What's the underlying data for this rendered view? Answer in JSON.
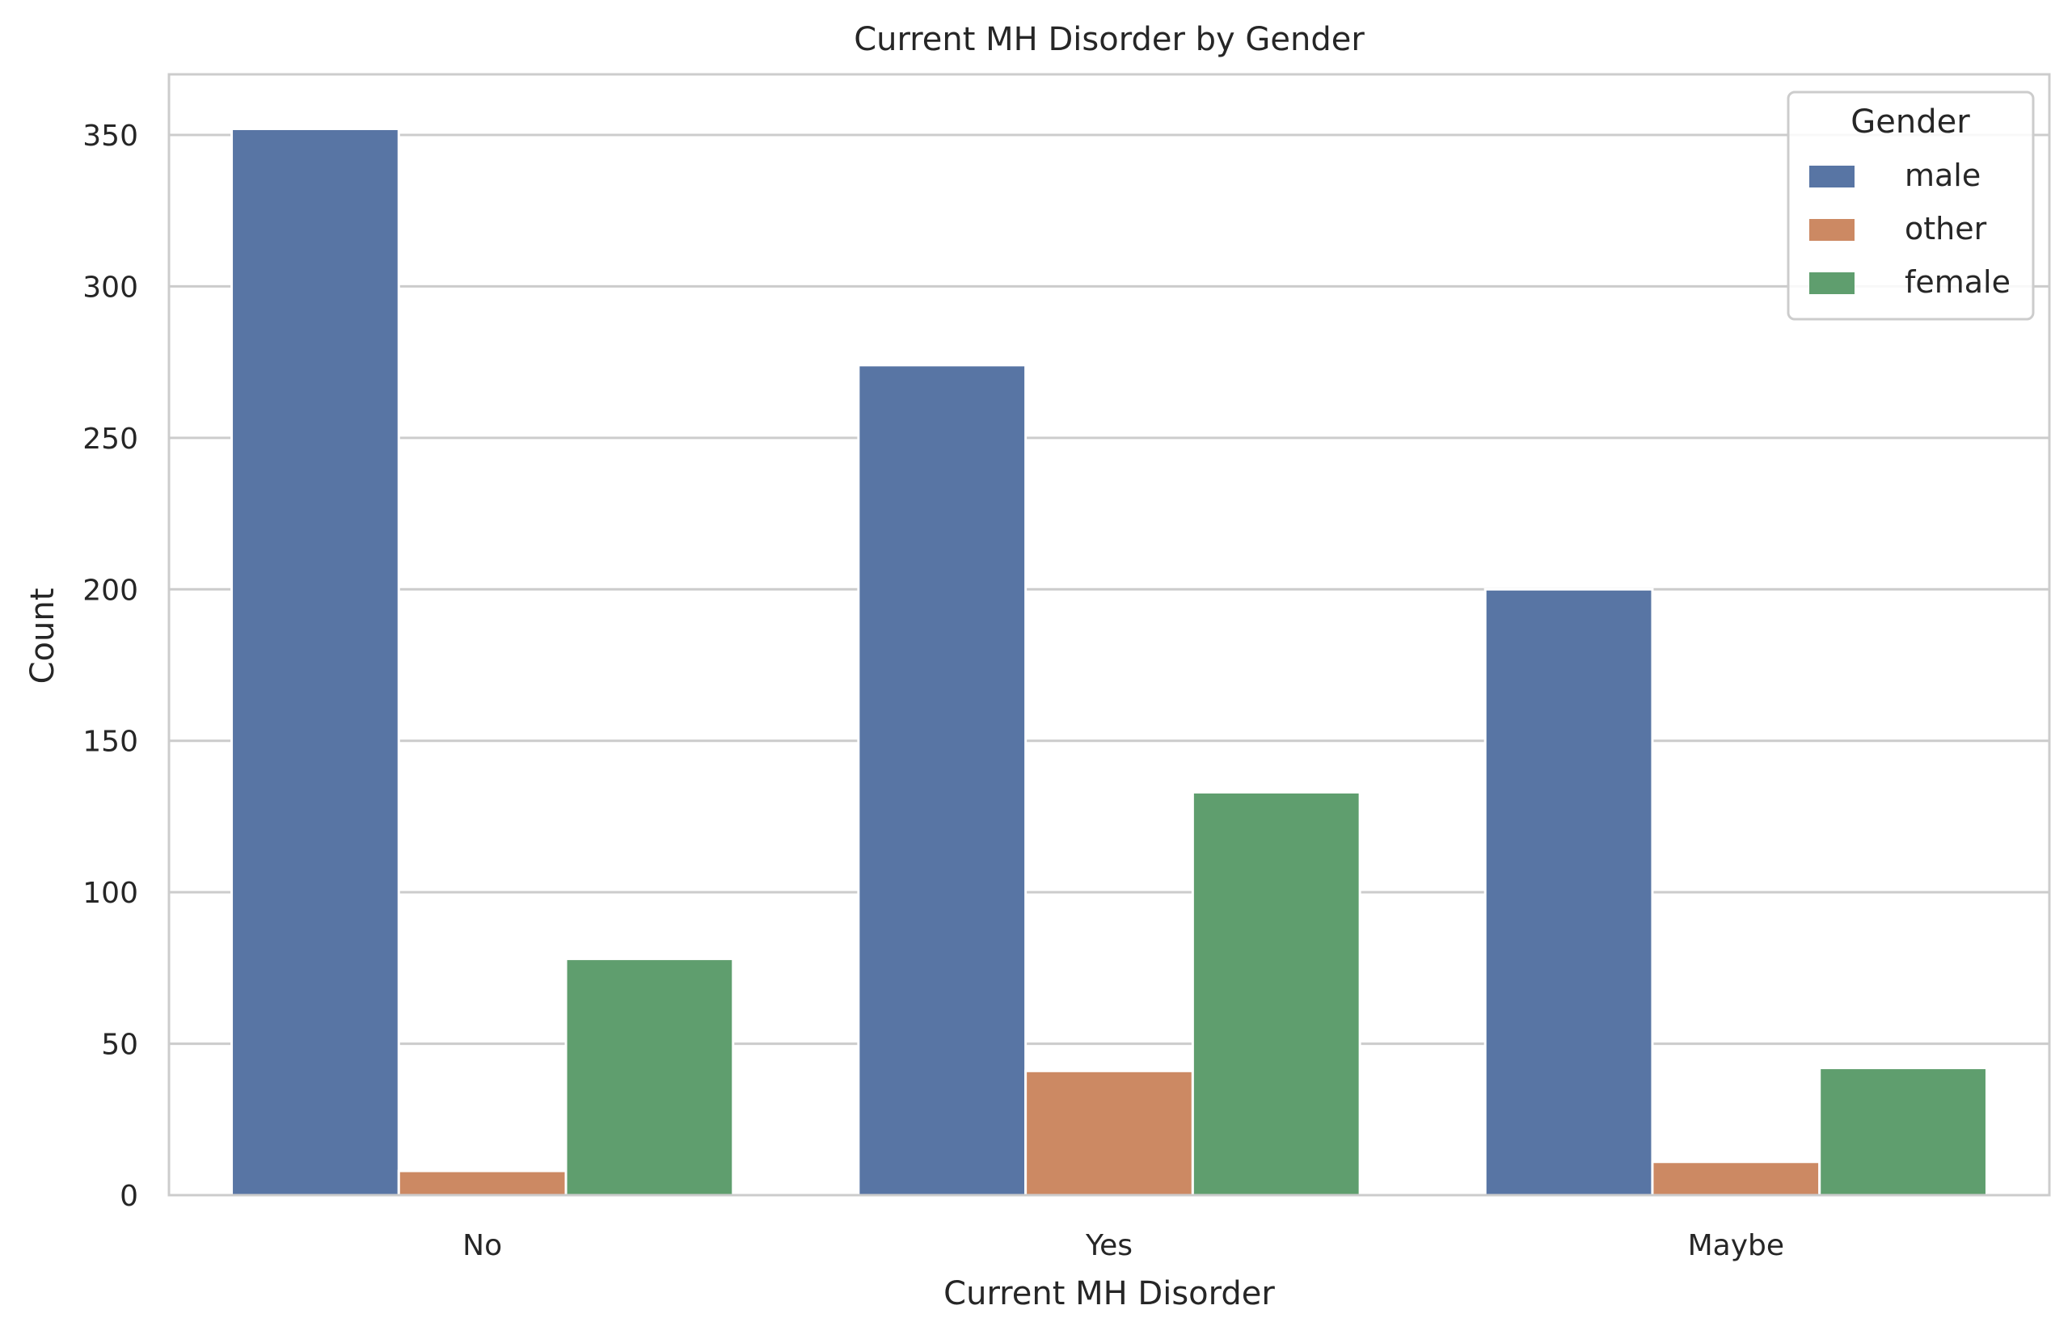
{
  "chart_data": {
    "type": "bar",
    "title": "Current MH Disorder by Gender",
    "xlabel": "Current MH Disorder",
    "ylabel": "Count",
    "categories": [
      "No",
      "Yes",
      "Maybe"
    ],
    "series": [
      {
        "name": "male",
        "color": "#5875a4",
        "values": [
          352,
          274,
          200
        ]
      },
      {
        "name": "other",
        "color": "#cc8963",
        "values": [
          8,
          41,
          11
        ]
      },
      {
        "name": "female",
        "color": "#5f9e6e",
        "values": [
          78,
          133,
          42
        ]
      }
    ],
    "ylim": [
      0,
      370
    ],
    "yticks": [
      0,
      50,
      100,
      150,
      200,
      250,
      300,
      350
    ],
    "grid": true,
    "legend": {
      "title": "Gender",
      "position": "top-right"
    }
  }
}
